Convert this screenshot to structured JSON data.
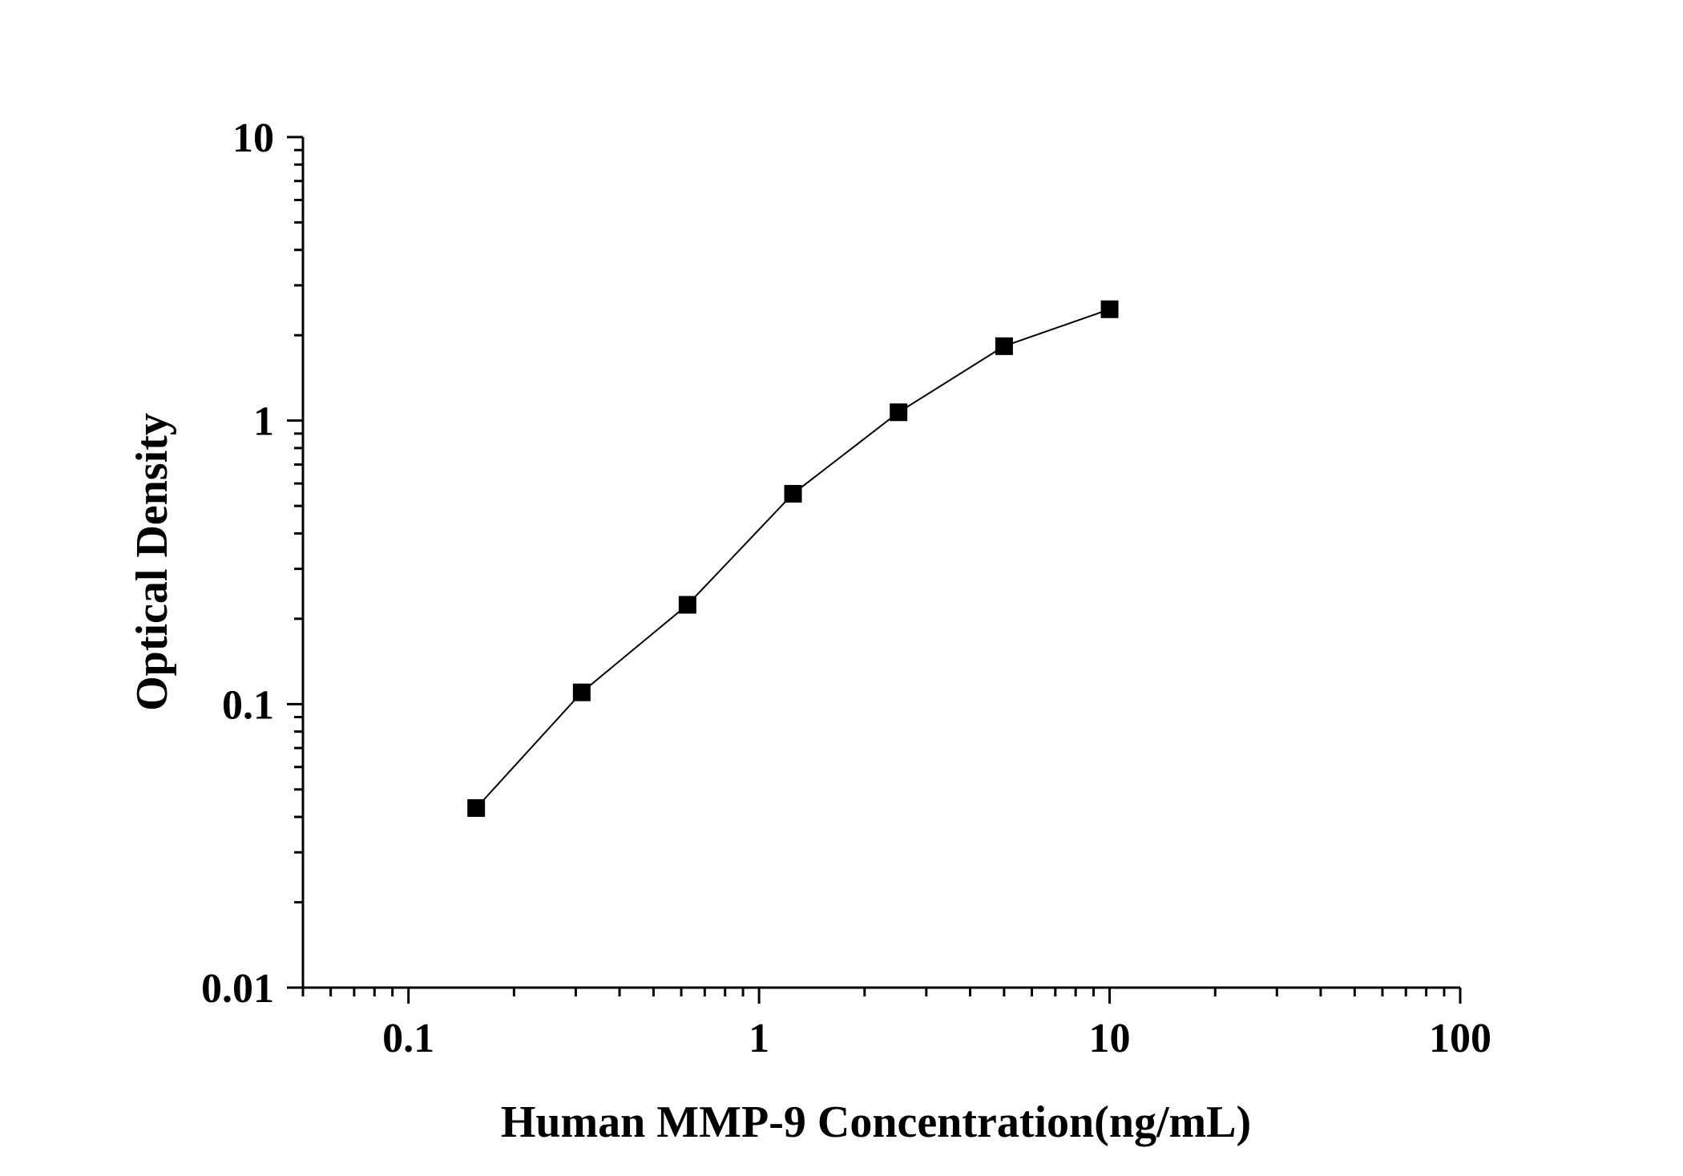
{
  "chart_data": {
    "type": "scatter",
    "title": "",
    "xlabel": "Human MMP-9 Concentration(ng/mL)",
    "ylabel": "Optical Density",
    "xscale": "log",
    "yscale": "log",
    "xlim": [
      0.05,
      100
    ],
    "ylim": [
      0.01,
      10
    ],
    "x_ticks": [
      {
        "value": 0.1,
        "label": "0.1"
      },
      {
        "value": 1,
        "label": "1"
      },
      {
        "value": 10,
        "label": "10"
      },
      {
        "value": 100,
        "label": "100"
      }
    ],
    "y_ticks": [
      {
        "value": 0.01,
        "label": "0.01"
      },
      {
        "value": 0.1,
        "label": "0.1"
      },
      {
        "value": 1,
        "label": "1"
      },
      {
        "value": 10,
        "label": "10"
      }
    ],
    "grid": false,
    "legend": "none",
    "marker": "square",
    "connecting_line": true,
    "color": "#000000",
    "series": [
      {
        "x": [
          0.156,
          0.312,
          0.625,
          1.25,
          2.5,
          5,
          10
        ],
        "y": [
          0.043,
          0.11,
          0.224,
          0.552,
          1.07,
          1.83,
          2.47
        ]
      }
    ]
  }
}
